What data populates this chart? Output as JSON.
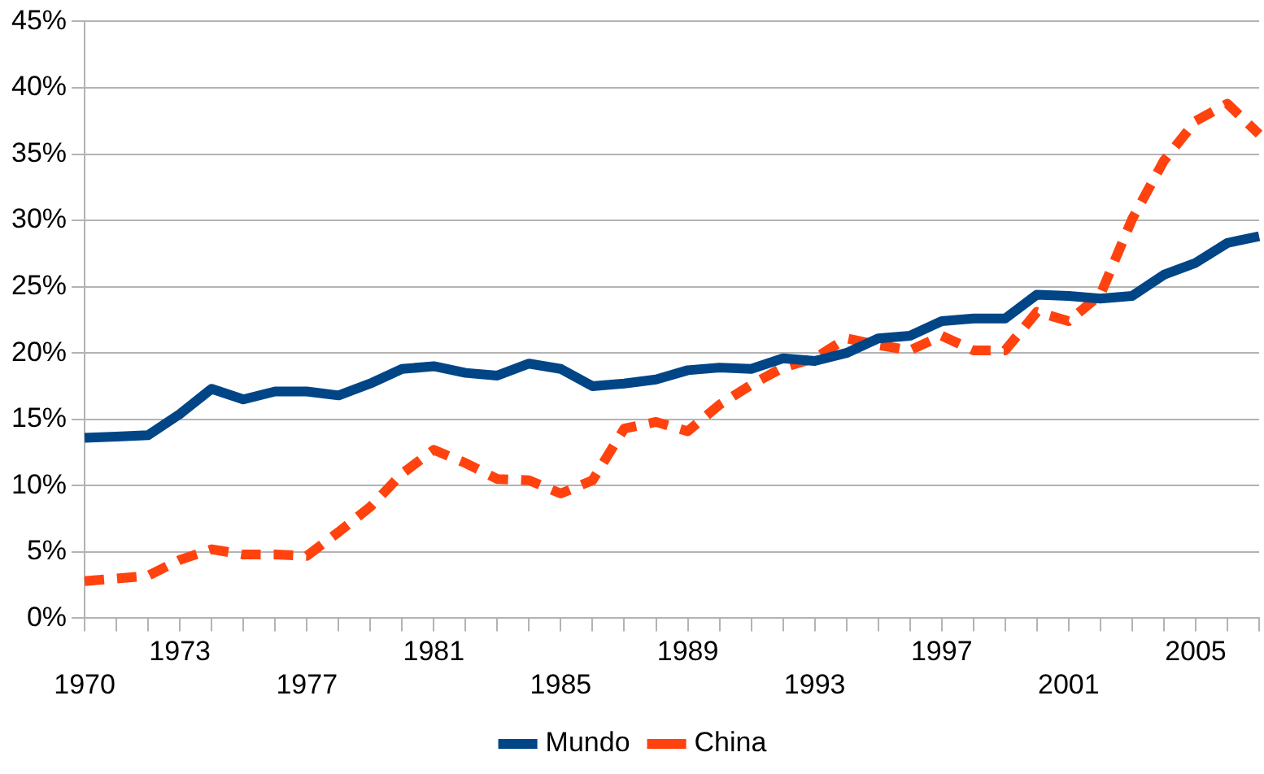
{
  "chart_data": {
    "type": "line",
    "categories": [
      "1970",
      null,
      null,
      "1973",
      null,
      null,
      null,
      "1977",
      null,
      null,
      null,
      "1981",
      null,
      null,
      null,
      "1985",
      null,
      null,
      null,
      "1989",
      null,
      null,
      null,
      "1993",
      null,
      null,
      null,
      "1997",
      null,
      null,
      null,
      "2001",
      null,
      null,
      null,
      "2005",
      null,
      null
    ],
    "series": [
      {
        "name": "Mundo",
        "color": "#004586",
        "line_style": "solid",
        "values": [
          13.6,
          13.7,
          13.8,
          15.4,
          17.3,
          16.5,
          17.1,
          17.1,
          16.8,
          17.7,
          18.8,
          19.0,
          18.5,
          18.3,
          19.2,
          18.8,
          17.5,
          17.7,
          18.0,
          18.7,
          18.9,
          18.8,
          19.6,
          19.4,
          20.0,
          21.1,
          21.3,
          22.4,
          22.6,
          22.6,
          24.4,
          24.3,
          24.1,
          24.3,
          25.9,
          26.8,
          28.3,
          28.8
        ]
      },
      {
        "name": "China",
        "color": "#ff420e",
        "line_style": "dashed",
        "values": [
          2.8,
          3.0,
          3.2,
          4.4,
          5.2,
          4.8,
          4.8,
          4.7,
          6.5,
          8.4,
          10.9,
          12.7,
          11.7,
          10.5,
          10.4,
          9.4,
          10.4,
          14.3,
          14.8,
          14.1,
          16.1,
          17.6,
          18.9,
          19.6,
          21.1,
          20.6,
          20.2,
          21.3,
          20.2,
          20.2,
          23.1,
          22.4,
          24.4,
          30.1,
          34.5,
          37.5,
          38.8,
          36.5
        ]
      }
    ],
    "ylim": [
      0,
      45
    ],
    "yticks": [
      {
        "value": 0,
        "label": "0%"
      },
      {
        "value": 5,
        "label": "5%"
      },
      {
        "value": 10,
        "label": "10%"
      },
      {
        "value": 15,
        "label": "15%"
      },
      {
        "value": 20,
        "label": "20%"
      },
      {
        "value": 25,
        "label": "25%"
      },
      {
        "value": 30,
        "label": "30%"
      },
      {
        "value": 35,
        "label": "35%"
      },
      {
        "value": 40,
        "label": "40%"
      },
      {
        "value": 45,
        "label": "45%"
      }
    ],
    "grid": "y",
    "legend": "bottom",
    "marker": "none"
  }
}
